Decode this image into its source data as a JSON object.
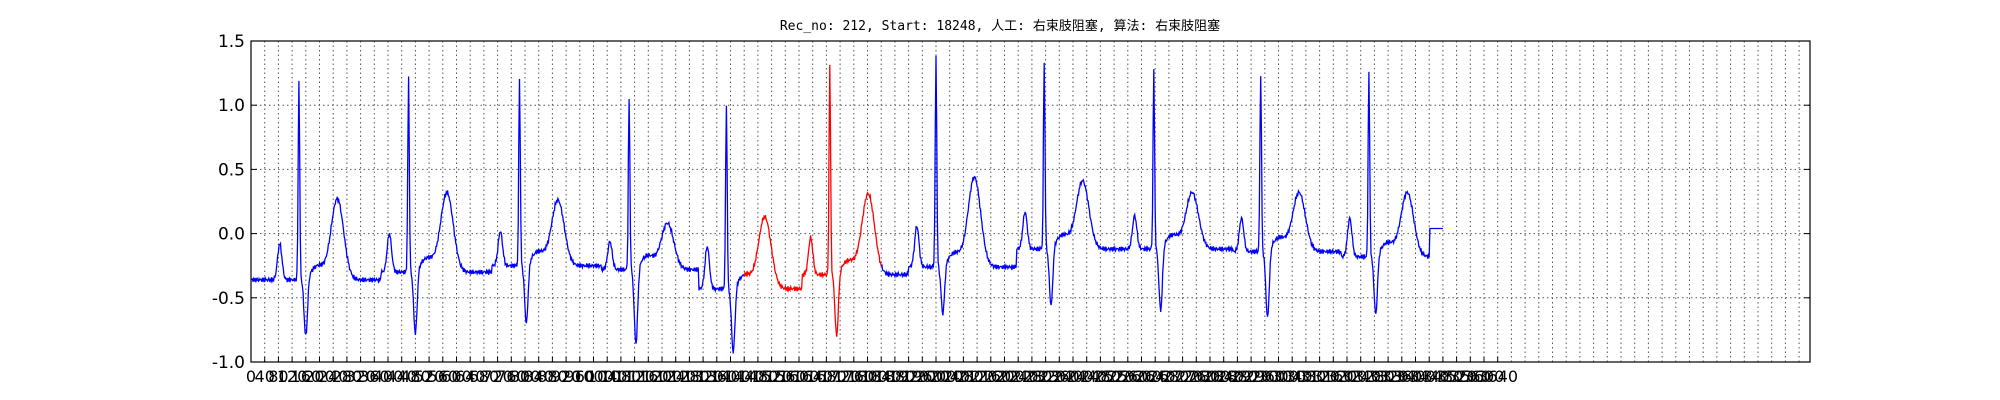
{
  "chart_data": {
    "type": "line",
    "title": "Rec_no: 212, Start: 18248, 人工: 右束肢阻塞, 算法: 右束肢阻塞",
    "xlabel": "",
    "ylabel": "",
    "xlim": [
      0,
      3640
    ],
    "ylim": [
      -1.0,
      1.5
    ],
    "grid": true,
    "yticks": [
      1.5,
      1.0,
      0.5,
      0.0,
      -0.5,
      -1.0
    ],
    "yticklabels": [
      "1.5",
      "1.0",
      "0.5",
      "0.0",
      "-0.5",
      "-1.0"
    ],
    "xticks": [
      0,
      40,
      80,
      120,
      160,
      200,
      240,
      280,
      320,
      360,
      400,
      440,
      480,
      520,
      560,
      600,
      640,
      680,
      720,
      760,
      800,
      840,
      880,
      920,
      960,
      1000,
      1040,
      1080,
      1120,
      1160,
      1200,
      1240,
      1280,
      1320,
      1360,
      1400,
      1440,
      1480,
      1520,
      1560,
      1600,
      1640,
      1680,
      1720,
      1760,
      1800,
      1840,
      1880,
      1920,
      1960,
      2000,
      2040,
      2080,
      2120,
      2160,
      2200,
      2240,
      2280,
      2320,
      2360,
      2400,
      2440,
      2480,
      2520,
      2560,
      2600,
      2640,
      2680,
      2720,
      2760,
      2800,
      2840,
      2880,
      2920,
      2960,
      3000,
      3040,
      3080,
      3120,
      3160,
      3200,
      3240,
      3280,
      3320,
      3360,
      3400,
      3440,
      3480,
      3520,
      3560,
      3600,
      3640
    ],
    "xticklabels": [
      "0",
      "40",
      "80",
      "120",
      "160",
      "200",
      "240",
      "280",
      "320",
      "360",
      "400",
      "440",
      "480",
      "520",
      "560",
      "600",
      "640",
      "680",
      "720",
      "760",
      "800",
      "840",
      "880",
      "920",
      "960",
      "1000",
      "1040",
      "1080",
      "1120",
      "1160",
      "1200",
      "1240",
      "1280",
      "1320",
      "1360",
      "1400",
      "1440",
      "1480",
      "1520",
      "1560",
      "1600",
      "1640",
      "1680",
      "1720",
      "1760",
      "1800",
      "1840",
      "1880",
      "1920",
      "1960",
      "2000",
      "2040",
      "2080",
      "2120",
      "2160",
      "2200",
      "2240",
      "2280",
      "2320",
      "2360",
      "2400",
      "2440",
      "2480",
      "2520",
      "2560",
      "2600",
      "2640",
      "2680",
      "2720",
      "2760",
      "2800",
      "2840",
      "2880",
      "2920",
      "2960",
      "3000",
      "3040",
      "3080",
      "3120",
      "3160",
      "3200",
      "3240",
      "3280",
      "3320",
      "3360",
      "3400",
      "3440",
      "3480",
      "3520",
      "3560",
      "3600",
      "3640"
    ],
    "vgrid_every": 40,
    "colors": {
      "signal": "#0000ff",
      "highlight": "#ff0000"
    },
    "highlight_range": [
      1440,
      1840
    ],
    "beats": [
      {
        "r": 140,
        "amp": 1.2,
        "p_time": 84,
        "p_amp": -0.08,
        "t_time": 252,
        "t_amp": 0.27,
        "s_amp": -0.82,
        "base": -0.36
      },
      {
        "r": 460,
        "amp": 1.22,
        "p_time": 404,
        "p_amp": 0.0,
        "t_time": 572,
        "t_amp": 0.32,
        "s_amp": -0.8,
        "base": -0.3
      },
      {
        "r": 784,
        "amp": 1.2,
        "p_time": 728,
        "p_amp": 0.02,
        "t_time": 896,
        "t_amp": 0.26,
        "s_amp": -0.72,
        "base": -0.25
      },
      {
        "r": 1104,
        "amp": 1.05,
        "p_time": 1048,
        "p_amp": -0.06,
        "t_time": 1216,
        "t_amp": 0.08,
        "s_amp": -0.88,
        "base": -0.28
      },
      {
        "r": 1388,
        "amp": 1.0,
        "p_time": 1332,
        "p_amp": -0.1,
        "t_time": 1500,
        "t_amp": 0.13,
        "s_amp": -0.95,
        "base": -0.43
      },
      {
        "r": 1690,
        "amp": 1.3,
        "p_time": 1634,
        "p_amp": -0.03,
        "t_time": 1802,
        "t_amp": 0.31,
        "s_amp": -0.82,
        "base": -0.32
      },
      {
        "r": 2000,
        "amp": 1.37,
        "p_time": 1944,
        "p_amp": 0.06,
        "t_time": 2112,
        "t_amp": 0.44,
        "s_amp": -0.65,
        "base": -0.26
      },
      {
        "r": 2316,
        "amp": 1.34,
        "p_time": 2260,
        "p_amp": 0.17,
        "t_time": 2428,
        "t_amp": 0.41,
        "s_amp": -0.58,
        "base": -0.12
      },
      {
        "r": 2636,
        "amp": 1.26,
        "p_time": 2580,
        "p_amp": 0.14,
        "t_time": 2748,
        "t_amp": 0.32,
        "s_amp": -0.62,
        "base": -0.12
      },
      {
        "r": 2948,
        "amp": 1.24,
        "p_time": 2892,
        "p_amp": 0.12,
        "t_time": 3060,
        "t_amp": 0.32,
        "s_amp": -0.68,
        "base": -0.14
      },
      {
        "r": 3264,
        "amp": 1.25,
        "p_time": 3208,
        "p_amp": 0.12,
        "t_time": 3376,
        "t_amp": 0.32,
        "s_amp": -0.65,
        "base": -0.18
      }
    ],
    "end_x": 3480,
    "end_y": 0.04
  }
}
